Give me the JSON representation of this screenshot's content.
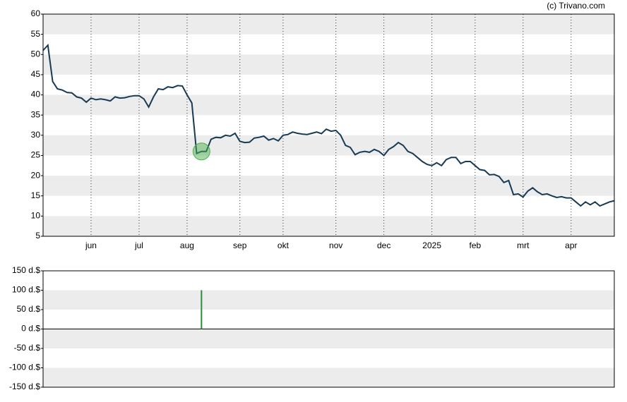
{
  "source": "(c) Trivano.com",
  "chart_data": [
    {
      "type": "line",
      "categories": [
        null,
        null,
        null,
        null,
        null,
        null,
        null,
        null,
        null,
        null,
        "jun",
        null,
        null,
        null,
        null,
        null,
        null,
        null,
        null,
        null,
        "jul",
        null,
        null,
        null,
        null,
        null,
        null,
        null,
        null,
        null,
        "aug",
        null,
        null,
        null,
        null,
        null,
        null,
        null,
        null,
        null,
        null,
        "sep",
        null,
        null,
        null,
        null,
        null,
        null,
        null,
        null,
        "okt",
        null,
        null,
        null,
        null,
        null,
        null,
        null,
        null,
        null,
        null,
        "nov",
        null,
        null,
        null,
        null,
        null,
        null,
        null,
        null,
        null,
        "dec",
        null,
        null,
        null,
        null,
        null,
        null,
        null,
        null,
        null,
        "2025",
        null,
        null,
        null,
        null,
        null,
        null,
        null,
        null,
        "feb",
        null,
        null,
        null,
        null,
        null,
        null,
        null,
        null,
        null,
        "mrt",
        null,
        null,
        null,
        null,
        null,
        null,
        null,
        null,
        null,
        "apr",
        null,
        null,
        null,
        null,
        null,
        null,
        null,
        null,
        null
      ],
      "series": [
        {
          "color": "#173a55",
          "values": [
            51,
            52.3,
            43.3,
            41.5,
            41.2,
            40.6,
            40.5,
            39.5,
            39.2,
            38.2,
            39.2,
            38.8,
            39,
            38.8,
            38.5,
            39.5,
            39.2,
            39.3,
            39.6,
            39.8,
            39.8,
            39,
            37,
            39.5,
            41.5,
            41.3,
            42,
            41.8,
            42.3,
            42.2,
            40,
            38,
            25.5,
            26,
            26,
            29,
            29.5,
            29.4,
            30,
            29.8,
            30.5,
            28.5,
            28.2,
            28.3,
            29.3,
            29.5,
            29.8,
            28.8,
            29.2,
            28.6,
            30,
            30.2,
            30.8,
            30.5,
            30.3,
            30.2,
            30.5,
            30.8,
            30.4,
            31.5,
            31,
            31.2,
            30,
            27.5,
            27,
            25.2,
            25.8,
            26,
            25.8,
            26.5,
            26,
            25,
            26.5,
            27.2,
            28.2,
            27.5,
            26,
            25.5,
            24.5,
            23.5,
            22.8,
            22.5,
            23.2,
            22.5,
            24,
            24.5,
            24.5,
            23,
            23.5,
            23.5,
            22.5,
            21.5,
            21.3,
            20.2,
            20.3,
            19.8,
            18.3,
            18.8,
            15.3,
            15.5,
            14.7,
            16.2,
            17,
            16,
            15.3,
            15.5,
            15,
            14.6,
            14.8,
            14.5,
            14.5,
            13.5,
            12.5,
            13.5,
            12.8,
            13.5,
            12.5,
            13,
            13.5,
            13.8
          ]
        }
      ],
      "highlight_index": 33,
      "highlight_color": "#4caf50",
      "ylim": [
        5,
        60
      ],
      "yticks": [
        5,
        10,
        15,
        20,
        25,
        30,
        35,
        40,
        45,
        50,
        55,
        60
      ],
      "grid": true
    },
    {
      "type": "bar",
      "color": "#2e8b3e",
      "values": [
        null,
        null,
        null,
        null,
        null,
        null,
        null,
        null,
        null,
        null,
        null,
        null,
        null,
        null,
        null,
        null,
        null,
        null,
        null,
        null,
        null,
        null,
        null,
        null,
        null,
        null,
        null,
        null,
        null,
        null,
        null,
        null,
        null,
        100,
        null,
        null,
        null,
        null,
        null,
        null,
        null,
        null,
        null,
        null,
        null,
        null,
        null,
        null,
        null,
        null,
        null,
        null,
        null,
        null,
        null,
        null,
        null,
        null,
        null,
        null,
        null,
        null,
        null,
        null,
        null,
        null,
        null,
        null,
        null,
        null,
        null,
        null,
        null,
        null,
        null,
        null,
        null,
        null,
        null,
        null,
        null,
        null,
        null,
        null,
        null,
        null,
        null,
        null,
        null,
        null,
        null,
        null,
        null,
        null,
        null,
        null,
        null,
        null,
        null,
        null,
        null,
        null,
        null,
        null,
        null,
        null,
        null,
        null,
        null,
        null,
        null,
        null,
        null,
        null,
        null,
        null,
        null,
        null,
        null,
        null
      ],
      "ylim": [
        -150,
        150
      ],
      "yticks": [
        {
          "value": -150,
          "label": "-150 d.$"
        },
        {
          "value": -100,
          "label": "-100 d.$"
        },
        {
          "value": -50,
          "label": "-50 d.$"
        },
        {
          "value": 0,
          "label": "0 d.$"
        },
        {
          "value": 50,
          "label": "50 d.$"
        },
        {
          "value": 100,
          "label": "100 d.$"
        },
        {
          "value": 150,
          "label": "150 d.$"
        }
      ],
      "grid": true
    }
  ]
}
